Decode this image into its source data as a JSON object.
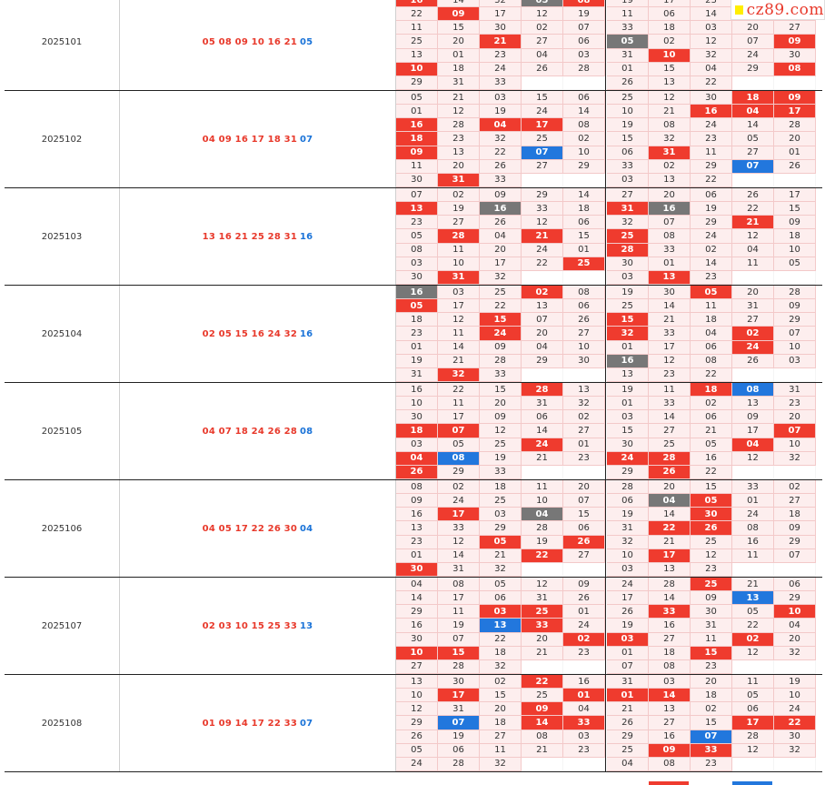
{
  "brand": {
    "logo_text": "cz89.com"
  },
  "rows": [
    {
      "issue": "2025101",
      "reds": [
        "05",
        "08",
        "09",
        "10",
        "16",
        "21"
      ],
      "blue": "05",
      "left": [
        [
          "16r",
          "14",
          "32",
          "05k",
          "08r"
        ],
        [
          "22",
          "09r",
          "17",
          "12",
          "19"
        ],
        [
          "11",
          "15",
          "30",
          "02",
          "07"
        ],
        [
          "25",
          "20",
          "21r",
          "27",
          "06"
        ],
        [
          "13",
          "01",
          "23",
          "04",
          "03"
        ],
        [
          "10r",
          "18",
          "24",
          "26",
          "28"
        ],
        [
          "29",
          "31",
          "33",
          "",
          ""
        ]
      ],
      "right": [
        [
          "19",
          "17",
          "23",
          "",
          ""
        ],
        [
          "11",
          "06",
          "14",
          "21r",
          "16r"
        ],
        [
          "33",
          "18",
          "03",
          "20",
          "27"
        ],
        [
          "05k",
          "02",
          "12",
          "07",
          "09r"
        ],
        [
          "31",
          "10r",
          "32",
          "24",
          "30"
        ],
        [
          "01",
          "15",
          "04",
          "29",
          "08r"
        ],
        [
          "26",
          "13",
          "22",
          "",
          ""
        ]
      ]
    },
    {
      "issue": "2025102",
      "reds": [
        "04",
        "09",
        "16",
        "17",
        "18",
        "31"
      ],
      "blue": "07",
      "left": [
        [
          "05",
          "21",
          "03",
          "15",
          "06"
        ],
        [
          "01",
          "12",
          "19",
          "24",
          "14"
        ],
        [
          "16r",
          "28",
          "04r",
          "17r",
          "08"
        ],
        [
          "18r",
          "23",
          "32",
          "25",
          "02"
        ],
        [
          "09r",
          "13",
          "22",
          "07b",
          "10"
        ],
        [
          "11",
          "20",
          "26",
          "27",
          "29"
        ],
        [
          "30",
          "31r",
          "33",
          "",
          ""
        ]
      ],
      "right": [
        [
          "25",
          "12",
          "30",
          "18r",
          "09r"
        ],
        [
          "10",
          "21",
          "16r",
          "04r",
          "17r"
        ],
        [
          "19",
          "08",
          "24",
          "14",
          "28"
        ],
        [
          "15",
          "32",
          "23",
          "05",
          "20"
        ],
        [
          "06",
          "31r",
          "11",
          "27",
          "01"
        ],
        [
          "33",
          "02",
          "29",
          "07b",
          "26"
        ],
        [
          "03",
          "13",
          "22",
          "",
          ""
        ]
      ]
    },
    {
      "issue": "2025103",
      "reds": [
        "13",
        "16",
        "21",
        "25",
        "28",
        "31"
      ],
      "blue": "16",
      "left": [
        [
          "07",
          "02",
          "09",
          "29",
          "14"
        ],
        [
          "13r",
          "19",
          "16k",
          "33",
          "18"
        ],
        [
          "23",
          "27",
          "26",
          "12",
          "06"
        ],
        [
          "05",
          "28r",
          "04",
          "21r",
          "15"
        ],
        [
          "08",
          "11",
          "20",
          "24",
          "01"
        ],
        [
          "03",
          "10",
          "17",
          "22",
          "25r"
        ],
        [
          "30",
          "31r",
          "32",
          "",
          ""
        ]
      ],
      "right": [
        [
          "27",
          "20",
          "06",
          "26",
          "17"
        ],
        [
          "31r",
          "16k",
          "19",
          "22",
          "15"
        ],
        [
          "32",
          "07",
          "29",
          "21r",
          "09"
        ],
        [
          "25r",
          "08",
          "24",
          "12",
          "18"
        ],
        [
          "28r",
          "33",
          "02",
          "04",
          "10"
        ],
        [
          "30",
          "01",
          "14",
          "11",
          "05"
        ],
        [
          "03",
          "13r",
          "23",
          "",
          ""
        ]
      ]
    },
    {
      "issue": "2025104",
      "reds": [
        "02",
        "05",
        "15",
        "16",
        "24",
        "32"
      ],
      "blue": "16",
      "left": [
        [
          "16k",
          "03",
          "25",
          "02r",
          "08"
        ],
        [
          "05r",
          "17",
          "22",
          "13",
          "06"
        ],
        [
          "18",
          "12",
          "15r",
          "07",
          "26"
        ],
        [
          "23",
          "11",
          "24r",
          "20",
          "27"
        ],
        [
          "01",
          "14",
          "09",
          "04",
          "10"
        ],
        [
          "19",
          "21",
          "28",
          "29",
          "30"
        ],
        [
          "31",
          "32r",
          "33",
          "",
          ""
        ]
      ],
      "right": [
        [
          "19",
          "30",
          "05r",
          "20",
          "28"
        ],
        [
          "25",
          "14",
          "11",
          "31",
          "09"
        ],
        [
          "15r",
          "21",
          "18",
          "27",
          "29"
        ],
        [
          "32r",
          "33",
          "04",
          "02r",
          "07"
        ],
        [
          "01",
          "17",
          "06",
          "24r",
          "10"
        ],
        [
          "16k",
          "12",
          "08",
          "26",
          "03"
        ],
        [
          "13",
          "23",
          "22",
          "",
          ""
        ]
      ]
    },
    {
      "issue": "2025105",
      "reds": [
        "04",
        "07",
        "18",
        "24",
        "26",
        "28"
      ],
      "blue": "08",
      "left": [
        [
          "16",
          "22",
          "15",
          "28r",
          "13"
        ],
        [
          "10",
          "11",
          "20",
          "31",
          "32"
        ],
        [
          "30",
          "17",
          "09",
          "06",
          "02"
        ],
        [
          "18r",
          "07r",
          "12",
          "14",
          "27"
        ],
        [
          "03",
          "05",
          "25",
          "24r",
          "01"
        ],
        [
          "04r",
          "08b",
          "19",
          "21",
          "23"
        ],
        [
          "26r",
          "29",
          "33",
          "",
          ""
        ]
      ],
      "right": [
        [
          "19",
          "11",
          "18r",
          "08b",
          "31"
        ],
        [
          "01",
          "33",
          "02",
          "13",
          "23"
        ],
        [
          "03",
          "14",
          "06",
          "09",
          "20"
        ],
        [
          "15",
          "27",
          "21",
          "17",
          "07r"
        ],
        [
          "30",
          "25",
          "05",
          "04r",
          "10"
        ],
        [
          "24r",
          "28r",
          "16",
          "12",
          "32"
        ],
        [
          "29",
          "26r",
          "22",
          "",
          ""
        ]
      ]
    },
    {
      "issue": "2025106",
      "reds": [
        "04",
        "05",
        "17",
        "22",
        "26",
        "30"
      ],
      "blue": "04",
      "left": [
        [
          "08",
          "02",
          "18",
          "11",
          "20"
        ],
        [
          "09",
          "24",
          "25",
          "10",
          "07"
        ],
        [
          "16",
          "17r",
          "03",
          "04k",
          "15"
        ],
        [
          "13",
          "33",
          "29",
          "28",
          "06"
        ],
        [
          "23",
          "12",
          "05r",
          "19",
          "26r"
        ],
        [
          "01",
          "14",
          "21",
          "22r",
          "27"
        ],
        [
          "30r",
          "31",
          "32",
          "",
          ""
        ]
      ],
      "right": [
        [
          "28",
          "20",
          "15",
          "33",
          "02"
        ],
        [
          "06",
          "04k",
          "05r",
          "01",
          "27"
        ],
        [
          "19",
          "14",
          "30r",
          "24",
          "18"
        ],
        [
          "31",
          "22r",
          "26r",
          "08",
          "09"
        ],
        [
          "32",
          "21",
          "25",
          "16",
          "29"
        ],
        [
          "10",
          "17r",
          "12",
          "11",
          "07"
        ],
        [
          "03",
          "13",
          "23",
          "",
          ""
        ]
      ]
    },
    {
      "issue": "2025107",
      "reds": [
        "02",
        "03",
        "10",
        "15",
        "25",
        "33"
      ],
      "blue": "13",
      "left": [
        [
          "04",
          "08",
          "05",
          "12",
          "09"
        ],
        [
          "14",
          "17",
          "06",
          "31",
          "26"
        ],
        [
          "29",
          "11",
          "03r",
          "25r",
          "01"
        ],
        [
          "16",
          "19",
          "13b",
          "33r",
          "24"
        ],
        [
          "30",
          "07",
          "22",
          "20",
          "02r"
        ],
        [
          "10r",
          "15r",
          "18",
          "21",
          "23"
        ],
        [
          "27",
          "28",
          "32",
          "",
          ""
        ]
      ],
      "right": [
        [
          "24",
          "28",
          "25r",
          "21",
          "06"
        ],
        [
          "17",
          "14",
          "09",
          "13b",
          "29"
        ],
        [
          "26",
          "33r",
          "30",
          "05",
          "10r"
        ],
        [
          "19",
          "16",
          "31",
          "22",
          "04"
        ],
        [
          "03r",
          "27",
          "11",
          "02r",
          "20"
        ],
        [
          "01",
          "18",
          "15r",
          "12",
          "32"
        ],
        [
          "07",
          "08",
          "23",
          "",
          ""
        ]
      ]
    },
    {
      "issue": "2025108",
      "reds": [
        "01",
        "09",
        "14",
        "17",
        "22",
        "33"
      ],
      "blue": "07",
      "left": [
        [
          "13",
          "30",
          "02",
          "22r",
          "16"
        ],
        [
          "10",
          "17r",
          "15",
          "25",
          "01r"
        ],
        [
          "12",
          "31",
          "20",
          "09r",
          "04"
        ],
        [
          "29",
          "07b",
          "18",
          "14r",
          "33r"
        ],
        [
          "26",
          "19",
          "27",
          "08",
          "03"
        ],
        [
          "05",
          "06",
          "11",
          "21",
          "23"
        ],
        [
          "24",
          "28",
          "32",
          "",
          ""
        ]
      ],
      "right": [
        [
          "31",
          "03",
          "20",
          "11",
          "19"
        ],
        [
          "01r",
          "14r",
          "18",
          "05",
          "10"
        ],
        [
          "21",
          "13",
          "02",
          "06",
          "24"
        ],
        [
          "26",
          "27",
          "15",
          "17r",
          "22r"
        ],
        [
          "29",
          "16",
          "07b",
          "28",
          "30"
        ],
        [
          "25",
          "09r",
          "33r",
          "12",
          "32"
        ],
        [
          "04",
          "08",
          "23",
          "",
          ""
        ]
      ]
    }
  ],
  "top_strip": [
    "r",
    "",
    "",
    "",
    "",
    "",
    "",
    "",
    "",
    ""
  ],
  "bottom_strip": [
    "",
    "",
    "",
    "",
    "",
    "",
    "r",
    "",
    "b",
    ""
  ]
}
